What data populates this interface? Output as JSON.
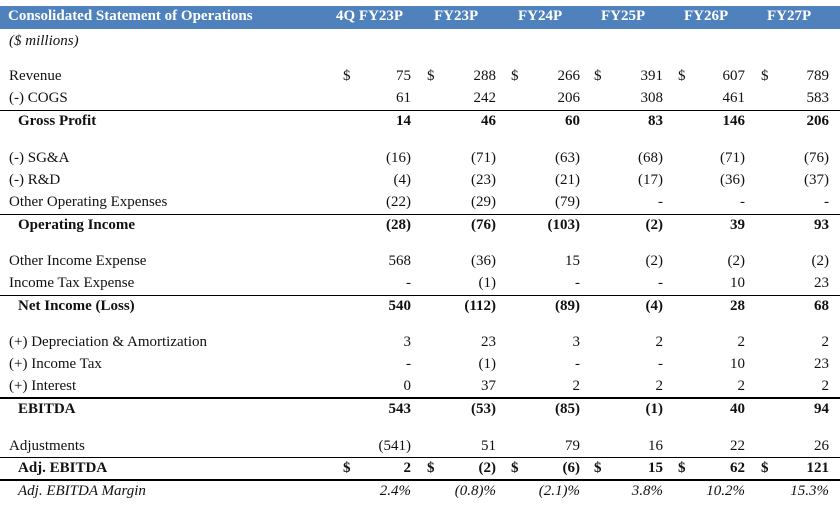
{
  "title": "Consolidated Statement of Operations",
  "subtitle": "($ millions)",
  "currency_symbol": "$",
  "columns": [
    "4Q FY23P",
    "FY23P",
    "FY24P",
    "FY25P",
    "FY26P",
    "FY27P"
  ],
  "rows": [
    {
      "id": "revenue",
      "label": "Revenue",
      "values": [
        "75",
        "288",
        "266",
        "391",
        "607",
        "789"
      ],
      "dollar": true,
      "bold": false,
      "italic": false,
      "indent": false
    },
    {
      "id": "cogs",
      "label": "(-) COGS",
      "values": [
        "61",
        "242",
        "206",
        "308",
        "461",
        "583"
      ],
      "dollar": false,
      "bold": false,
      "italic": false,
      "indent": false
    },
    {
      "id": "gross-profit",
      "label": "Gross Profit",
      "values": [
        "14",
        "46",
        "60",
        "83",
        "146",
        "206"
      ],
      "dollar": false,
      "bold": true,
      "italic": false,
      "indent": true
    },
    {
      "id": "sga",
      "label": "(-) SG&A",
      "values": [
        "(16)",
        "(71)",
        "(63)",
        "(68)",
        "(71)",
        "(76)"
      ],
      "dollar": false,
      "bold": false,
      "italic": false,
      "indent": false
    },
    {
      "id": "rnd",
      "label": "(-) R&D",
      "values": [
        "(4)",
        "(23)",
        "(21)",
        "(17)",
        "(36)",
        "(37)"
      ],
      "dollar": false,
      "bold": false,
      "italic": false,
      "indent": false
    },
    {
      "id": "other-opex",
      "label": "Other Operating Expenses",
      "values": [
        "(22)",
        "(29)",
        "(79)",
        "-",
        "-",
        "-"
      ],
      "dollar": false,
      "bold": false,
      "italic": false,
      "indent": false
    },
    {
      "id": "operating-income",
      "label": "Operating Income",
      "values": [
        "(28)",
        "(76)",
        "(103)",
        "(2)",
        "39",
        "93"
      ],
      "dollar": false,
      "bold": true,
      "italic": false,
      "indent": true
    },
    {
      "id": "other-income-expense",
      "label": "Other Income Expense",
      "values": [
        "568",
        "(36)",
        "15",
        "(2)",
        "(2)",
        "(2)"
      ],
      "dollar": false,
      "bold": false,
      "italic": false,
      "indent": false
    },
    {
      "id": "income-tax-expense",
      "label": "Income Tax Expense",
      "values": [
        "-",
        "(1)",
        "-",
        "-",
        "10",
        "23"
      ],
      "dollar": false,
      "bold": false,
      "italic": false,
      "indent": false
    },
    {
      "id": "net-income",
      "label": "Net Income (Loss)",
      "values": [
        "540",
        "(112)",
        "(89)",
        "(4)",
        "28",
        "68"
      ],
      "dollar": false,
      "bold": true,
      "italic": false,
      "indent": true
    },
    {
      "id": "depreciation",
      "label": "(+) Depreciation & Amortization",
      "values": [
        "3",
        "23",
        "3",
        "2",
        "2",
        "2"
      ],
      "dollar": false,
      "bold": false,
      "italic": false,
      "indent": false
    },
    {
      "id": "income-tax",
      "label": "(+) Income Tax",
      "values": [
        "-",
        "(1)",
        "-",
        "-",
        "10",
        "23"
      ],
      "dollar": false,
      "bold": false,
      "italic": false,
      "indent": false
    },
    {
      "id": "interest",
      "label": "(+) Interest",
      "values": [
        "0",
        "37",
        "2",
        "2",
        "2",
        "2"
      ],
      "dollar": false,
      "bold": false,
      "italic": false,
      "indent": false
    },
    {
      "id": "ebitda",
      "label": "EBITDA",
      "values": [
        "543",
        "(53)",
        "(85)",
        "(1)",
        "40",
        "94"
      ],
      "dollar": false,
      "bold": true,
      "italic": false,
      "indent": true
    },
    {
      "id": "adjustments",
      "label": "Adjustments",
      "values": [
        "(541)",
        "51",
        "79",
        "16",
        "22",
        "26"
      ],
      "dollar": false,
      "bold": false,
      "italic": false,
      "indent": false
    },
    {
      "id": "adj-ebitda",
      "label": "Adj. EBITDA",
      "values": [
        "2",
        "(2)",
        "(6)",
        "15",
        "62",
        "121"
      ],
      "dollar": true,
      "bold": true,
      "italic": false,
      "indent": true
    },
    {
      "id": "adj-ebitda-margin",
      "label": "Adj. EBITDA Margin",
      "values": [
        "2.4%",
        "(0.8)%",
        "(2.1)%",
        "3.8%",
        "10.2%",
        "15.3%"
      ],
      "dollar": false,
      "bold": false,
      "italic": true,
      "indent": true
    }
  ],
  "colors": {
    "header_bg": "#4f81bd",
    "header_text": "#ffffff",
    "text": "#111111",
    "rule": "#000000"
  }
}
